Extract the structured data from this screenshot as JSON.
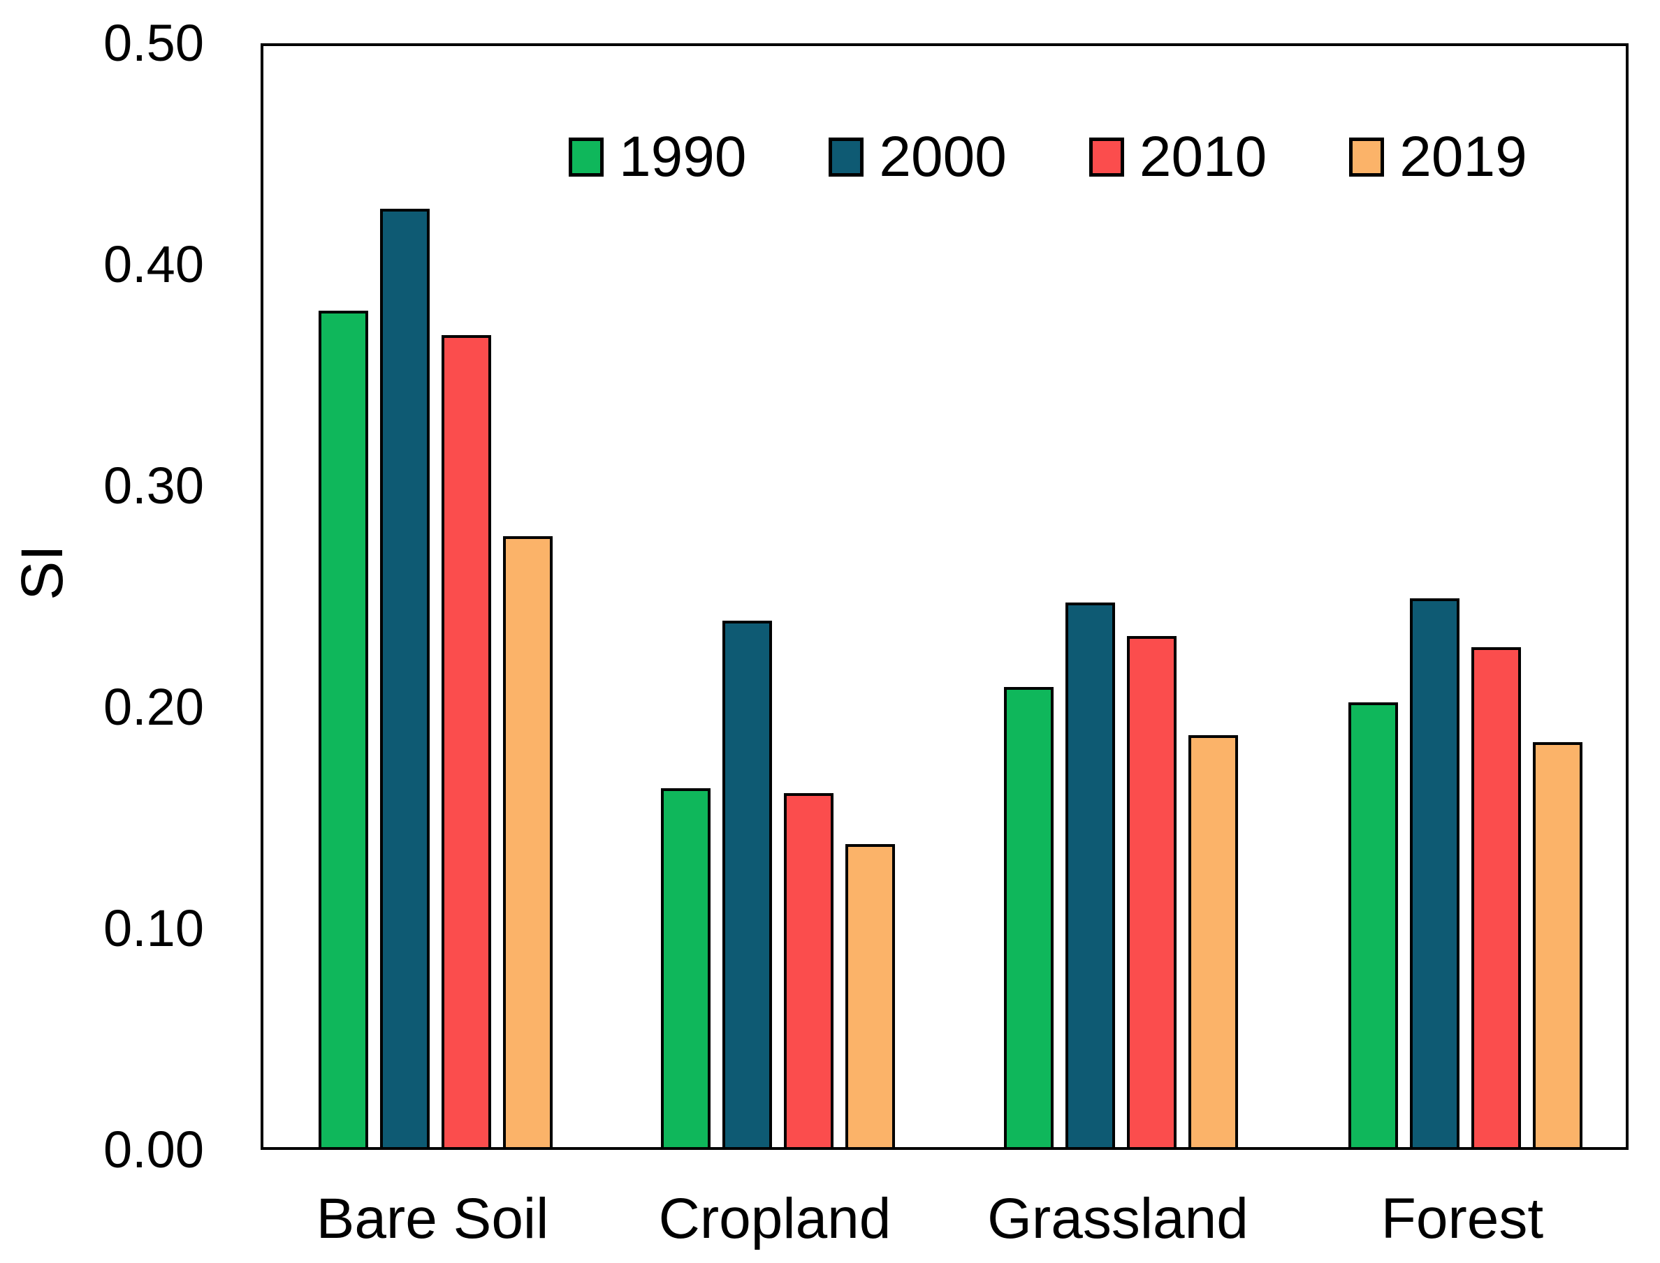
{
  "chart_data": {
    "type": "bar",
    "title": "",
    "xlabel": "",
    "ylabel": "SI",
    "categories": [
      "Bare Soil",
      "Cropland",
      "Grassland",
      "Forest"
    ],
    "series": [
      {
        "name": "1990",
        "color": "#0FB75B",
        "values": [
          0.378,
          0.162,
          0.208,
          0.201
        ]
      },
      {
        "name": "2000",
        "color": "#0E5A73",
        "values": [
          0.424,
          0.238,
          0.246,
          0.248
        ]
      },
      {
        "name": "2010",
        "color": "#FB4D4D",
        "values": [
          0.367,
          0.16,
          0.231,
          0.226
        ]
      },
      {
        "name": "2019",
        "color": "#FBB369",
        "values": [
          0.276,
          0.137,
          0.186,
          0.183
        ]
      }
    ],
    "ylim": [
      0.0,
      0.5
    ],
    "yticks": [
      "0.50",
      "0.40",
      "0.30",
      "0.20",
      "0.10",
      "0.00"
    ],
    "ytick_values": [
      0.5,
      0.4,
      0.3,
      0.2,
      0.1,
      0.0
    ],
    "grid": false,
    "legend_position": "top-inside",
    "bar_outline_color": "#000000",
    "axis_color": "#000000",
    "text_color": "#000000"
  }
}
